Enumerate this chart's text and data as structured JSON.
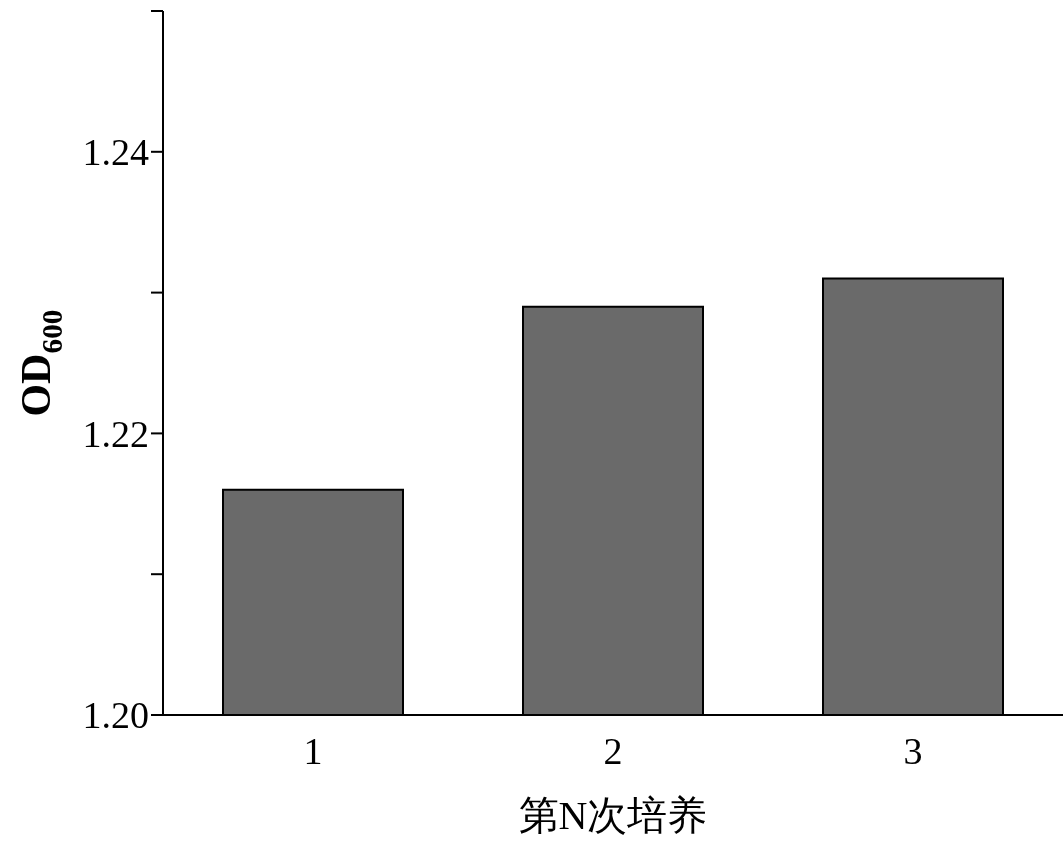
{
  "chart_data": {
    "type": "bar",
    "xlabel": "第N次培养",
    "ylabel": "OD$_{600}$",
    "categories": [
      "1",
      "2",
      "3"
    ],
    "values": [
      1.216,
      1.229,
      1.231
    ],
    "color": "#6a6a6a",
    "ylim": [
      1.2,
      1.25
    ],
    "yticks": [
      {
        "value": 1.2,
        "label": "1.20"
      },
      {
        "value": 1.21,
        "label": null
      },
      {
        "value": 1.22,
        "label": "1.22"
      },
      {
        "value": 1.23,
        "label": null
      },
      {
        "value": 1.24,
        "label": "1.24"
      },
      {
        "value": 1.25,
        "label": null
      }
    ],
    "grid": false,
    "legend": false
  }
}
